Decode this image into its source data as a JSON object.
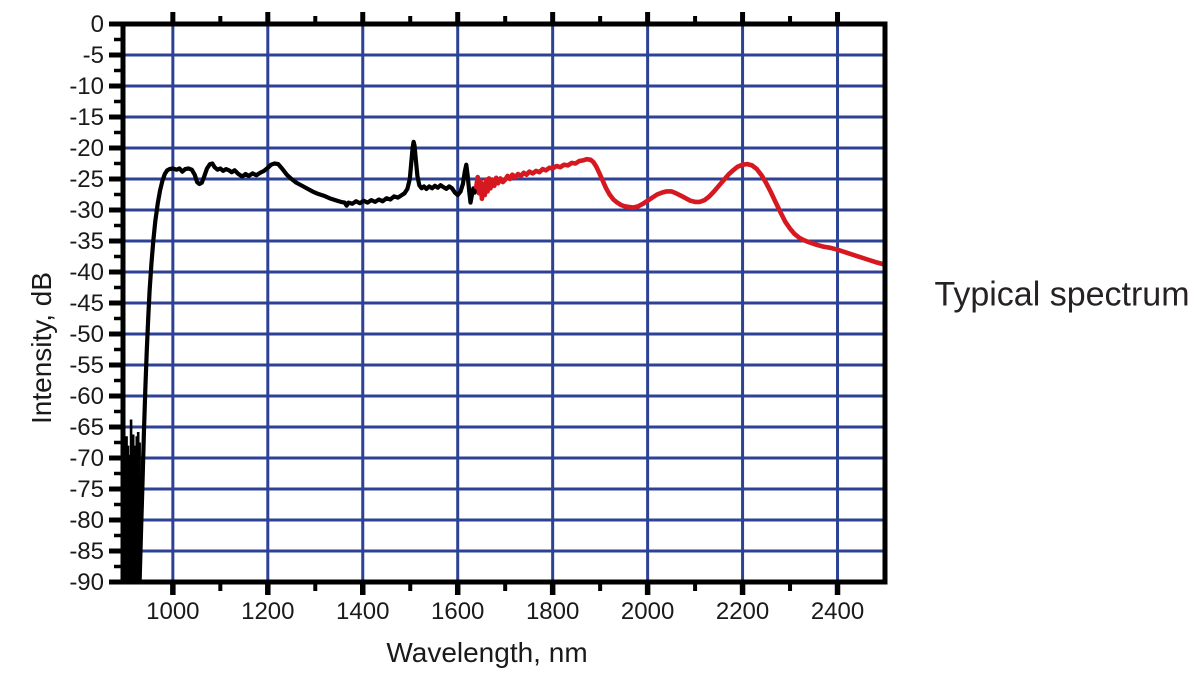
{
  "page": {
    "background": "#ffffff"
  },
  "chart_data": {
    "type": "line",
    "title": "",
    "xlabel": "Wavelength, nm",
    "ylabel": "Intensity, dB",
    "annotation": "Typical spectrum",
    "xlim": [
      895,
      2500
    ],
    "ylim": [
      -90,
      0
    ],
    "grid": {
      "show": true,
      "color": "#2d4294",
      "x_lines": [
        1000,
        1200,
        1400,
        1600,
        1800,
        2000,
        2200,
        2400
      ],
      "y_lines": [
        -5,
        -10,
        -15,
        -20,
        -25,
        -30,
        -35,
        -40,
        -45,
        -50,
        -55,
        -60,
        -65,
        -70,
        -75,
        -80,
        -85
      ]
    },
    "x_major_ticks": [
      1000,
      1200,
      1400,
      1600,
      1800,
      2000,
      2200,
      2400
    ],
    "x_minor_ticks": [
      1100,
      1300,
      1500,
      1700,
      1900,
      2100,
      2300
    ],
    "y_major_ticks": [
      0,
      -5,
      -10,
      -15,
      -20,
      -25,
      -30,
      -35,
      -40,
      -45,
      -50,
      -55,
      -60,
      -65,
      -70,
      -75,
      -80,
      -85,
      -90
    ],
    "y_minor_ticks": [
      -2.5,
      -7.5,
      -12.5,
      -17.5,
      -22.5,
      -27.5,
      -32.5,
      -37.5,
      -42.5,
      -47.5,
      -52.5,
      -57.5,
      -62.5,
      -67.5,
      -72.5,
      -77.5,
      -82.5,
      -87.5
    ],
    "legend": {
      "show": false
    },
    "colors": {
      "frame": "#000000",
      "tick_label": "#1a1a1a",
      "black_curve": "#000000",
      "red_curve": "#d61920"
    },
    "noise_band": {
      "color": "#000000",
      "base": -90,
      "spikes": [
        [
          896,
          -71
        ],
        [
          897,
          -69
        ],
        [
          898,
          -73.5
        ],
        [
          899.5,
          -67
        ],
        [
          901,
          -71.5
        ],
        [
          902.5,
          -66.5
        ],
        [
          904,
          -72.5
        ],
        [
          905.5,
          -68
        ],
        [
          907,
          -70.5
        ],
        [
          908.5,
          -74.5
        ],
        [
          910,
          -69.5
        ],
        [
          911,
          -75.5
        ],
        [
          912,
          -63.8
        ],
        [
          913.5,
          -67.5
        ],
        [
          915,
          -72
        ],
        [
          916.5,
          -66.2
        ],
        [
          918,
          -70
        ],
        [
          919.5,
          -73.5
        ],
        [
          921,
          -68
        ],
        [
          922.5,
          -71.5
        ],
        [
          924,
          -66.5
        ],
        [
          925.5,
          -69.5
        ],
        [
          927,
          -65.8
        ],
        [
          928.5,
          -70.5
        ],
        [
          930,
          -67.5
        ]
      ]
    },
    "series": [
      {
        "name": "black-segment",
        "color": "#000000",
        "stroke_width": 4.2,
        "points": [
          [
            930,
            -90
          ],
          [
            933,
            -82
          ],
          [
            936,
            -74
          ],
          [
            939,
            -66
          ],
          [
            942,
            -59
          ],
          [
            945,
            -53
          ],
          [
            948,
            -47.5
          ],
          [
            951,
            -43
          ],
          [
            955,
            -38.5
          ],
          [
            959,
            -34.8
          ],
          [
            963,
            -31.8
          ],
          [
            968,
            -29.0
          ],
          [
            973,
            -26.9
          ],
          [
            978,
            -25.3
          ],
          [
            983,
            -24.2
          ],
          [
            988,
            -23.6
          ],
          [
            993,
            -23.4
          ],
          [
            1000,
            -23.3
          ],
          [
            1008,
            -23.5
          ],
          [
            1014,
            -23.3
          ],
          [
            1020,
            -23.8
          ],
          [
            1026,
            -23.4
          ],
          [
            1033,
            -23.3
          ],
          [
            1040,
            -23.5
          ],
          [
            1046,
            -24.3
          ],
          [
            1051,
            -25.5
          ],
          [
            1056,
            -25.8
          ],
          [
            1061,
            -25.6
          ],
          [
            1066,
            -24.6
          ],
          [
            1072,
            -23.3
          ],
          [
            1078,
            -22.6
          ],
          [
            1083,
            -22.5
          ],
          [
            1088,
            -23.1
          ],
          [
            1094,
            -23.5
          ],
          [
            1100,
            -23.3
          ],
          [
            1106,
            -23.7
          ],
          [
            1112,
            -23.4
          ],
          [
            1118,
            -23.6
          ],
          [
            1124,
            -23.9
          ],
          [
            1130,
            -23.6
          ],
          [
            1138,
            -24.2
          ],
          [
            1146,
            -24.6
          ],
          [
            1153,
            -24.2
          ],
          [
            1160,
            -24.5
          ],
          [
            1168,
            -24.1
          ],
          [
            1176,
            -24.4
          ],
          [
            1184,
            -24.0
          ],
          [
            1192,
            -23.7
          ],
          [
            1200,
            -23.2
          ],
          [
            1207,
            -22.7
          ],
          [
            1214,
            -22.5
          ],
          [
            1222,
            -22.6
          ],
          [
            1230,
            -23.3
          ],
          [
            1240,
            -24.3
          ],
          [
            1250,
            -25.0
          ],
          [
            1260,
            -25.6
          ],
          [
            1270,
            -26.0
          ],
          [
            1282,
            -26.5
          ],
          [
            1294,
            -27.0
          ],
          [
            1306,
            -27.4
          ],
          [
            1318,
            -27.7
          ],
          [
            1330,
            -28.1
          ],
          [
            1342,
            -28.4
          ],
          [
            1354,
            -28.7
          ],
          [
            1362,
            -28.8
          ],
          [
            1366,
            -29.3
          ],
          [
            1370,
            -28.8
          ],
          [
            1378,
            -29.0
          ],
          [
            1386,
            -28.6
          ],
          [
            1394,
            -28.9
          ],
          [
            1402,
            -28.5
          ],
          [
            1410,
            -28.8
          ],
          [
            1418,
            -28.4
          ],
          [
            1426,
            -28.7
          ],
          [
            1434,
            -28.3
          ],
          [
            1442,
            -28.6
          ],
          [
            1450,
            -28.1
          ],
          [
            1458,
            -28.3
          ],
          [
            1466,
            -27.8
          ],
          [
            1474,
            -28.0
          ],
          [
            1482,
            -27.6
          ],
          [
            1488,
            -27.3
          ],
          [
            1494,
            -26.6
          ],
          [
            1499,
            -25.0
          ],
          [
            1502,
            -22.5
          ],
          [
            1505,
            -20.0
          ],
          [
            1507,
            -19.0
          ],
          [
            1509,
            -19.6
          ],
          [
            1512,
            -22.0
          ],
          [
            1515,
            -24.5
          ],
          [
            1519,
            -26.0
          ],
          [
            1524,
            -26.5
          ],
          [
            1529,
            -26.2
          ],
          [
            1534,
            -26.6
          ],
          [
            1540,
            -26.2
          ],
          [
            1546,
            -26.5
          ],
          [
            1552,
            -26.1
          ],
          [
            1558,
            -26.4
          ],
          [
            1564,
            -26.0
          ],
          [
            1570,
            -26.3
          ],
          [
            1576,
            -26.6
          ],
          [
            1582,
            -26.2
          ],
          [
            1588,
            -26.5
          ],
          [
            1594,
            -27.2
          ],
          [
            1600,
            -27.6
          ],
          [
            1606,
            -27.0
          ],
          [
            1611,
            -25.8
          ],
          [
            1615,
            -23.8
          ],
          [
            1618,
            -22.7
          ],
          [
            1621,
            -24.5
          ],
          [
            1624,
            -26.8
          ],
          [
            1627,
            -28.8
          ],
          [
            1630,
            -27.5
          ],
          [
            1633,
            -26.5
          ],
          [
            1636,
            -27.2
          ],
          [
            1639,
            -26.3
          ]
        ]
      },
      {
        "name": "red-segment",
        "color": "#d61920",
        "stroke_width": 4.6,
        "points": [
          [
            1639,
            -26.3
          ],
          [
            1642,
            -24.7
          ],
          [
            1645,
            -27.3
          ],
          [
            1648,
            -25.3
          ],
          [
            1651,
            -28.2
          ],
          [
            1654,
            -25.8
          ],
          [
            1657,
            -27.6
          ],
          [
            1660,
            -25.1
          ],
          [
            1663,
            -27.0
          ],
          [
            1666,
            -24.9
          ],
          [
            1669,
            -26.5
          ],
          [
            1673,
            -25.1
          ],
          [
            1677,
            -26.1
          ],
          [
            1681,
            -24.8
          ],
          [
            1685,
            -25.7
          ],
          [
            1690,
            -24.9
          ],
          [
            1695,
            -25.5
          ],
          [
            1700,
            -25.1
          ],
          [
            1705,
            -24.5
          ],
          [
            1710,
            -25.0
          ],
          [
            1715,
            -24.3
          ],
          [
            1721,
            -24.7
          ],
          [
            1727,
            -24.2
          ],
          [
            1733,
            -24.5
          ],
          [
            1739,
            -24.0
          ],
          [
            1745,
            -24.3
          ],
          [
            1751,
            -23.8
          ],
          [
            1758,
            -24.1
          ],
          [
            1765,
            -23.7
          ],
          [
            1772,
            -23.9
          ],
          [
            1779,
            -23.4
          ],
          [
            1786,
            -23.6
          ],
          [
            1793,
            -23.2
          ],
          [
            1800,
            -23.3
          ],
          [
            1808,
            -22.9
          ],
          [
            1816,
            -23.1
          ],
          [
            1824,
            -22.7
          ],
          [
            1832,
            -22.8
          ],
          [
            1840,
            -22.4
          ],
          [
            1848,
            -22.5
          ],
          [
            1856,
            -22.1
          ],
          [
            1864,
            -22.0
          ],
          [
            1872,
            -21.8
          ],
          [
            1880,
            -21.9
          ],
          [
            1886,
            -22.3
          ],
          [
            1892,
            -23.0
          ],
          [
            1898,
            -24.0
          ],
          [
            1905,
            -25.2
          ],
          [
            1912,
            -26.4
          ],
          [
            1920,
            -27.5
          ],
          [
            1928,
            -28.3
          ],
          [
            1936,
            -28.8
          ],
          [
            1944,
            -29.2
          ],
          [
            1952,
            -29.4
          ],
          [
            1960,
            -29.5
          ],
          [
            1970,
            -29.6
          ],
          [
            1980,
            -29.4
          ],
          [
            1990,
            -29.0
          ],
          [
            2000,
            -28.5
          ],
          [
            2010,
            -28.0
          ],
          [
            2020,
            -27.5
          ],
          [
            2030,
            -27.2
          ],
          [
            2040,
            -27.0
          ],
          [
            2050,
            -27.0
          ],
          [
            2060,
            -27.3
          ],
          [
            2070,
            -27.7
          ],
          [
            2080,
            -28.1
          ],
          [
            2090,
            -28.5
          ],
          [
            2100,
            -28.7
          ],
          [
            2110,
            -28.7
          ],
          [
            2120,
            -28.4
          ],
          [
            2130,
            -27.8
          ],
          [
            2140,
            -27.0
          ],
          [
            2150,
            -26.1
          ],
          [
            2160,
            -25.2
          ],
          [
            2170,
            -24.3
          ],
          [
            2180,
            -23.6
          ],
          [
            2190,
            -23.0
          ],
          [
            2200,
            -22.7
          ],
          [
            2210,
            -22.6
          ],
          [
            2220,
            -22.8
          ],
          [
            2230,
            -23.4
          ],
          [
            2240,
            -24.4
          ],
          [
            2250,
            -25.7
          ],
          [
            2260,
            -27.2
          ],
          [
            2270,
            -28.8
          ],
          [
            2280,
            -30.4
          ],
          [
            2290,
            -31.9
          ],
          [
            2300,
            -33.0
          ],
          [
            2310,
            -33.9
          ],
          [
            2320,
            -34.5
          ],
          [
            2330,
            -34.9
          ],
          [
            2340,
            -35.2
          ],
          [
            2355,
            -35.6
          ],
          [
            2370,
            -35.9
          ],
          [
            2385,
            -36.1
          ],
          [
            2400,
            -36.4
          ],
          [
            2420,
            -36.9
          ],
          [
            2440,
            -37.4
          ],
          [
            2460,
            -37.9
          ],
          [
            2480,
            -38.4
          ],
          [
            2500,
            -38.8
          ]
        ]
      }
    ]
  }
}
